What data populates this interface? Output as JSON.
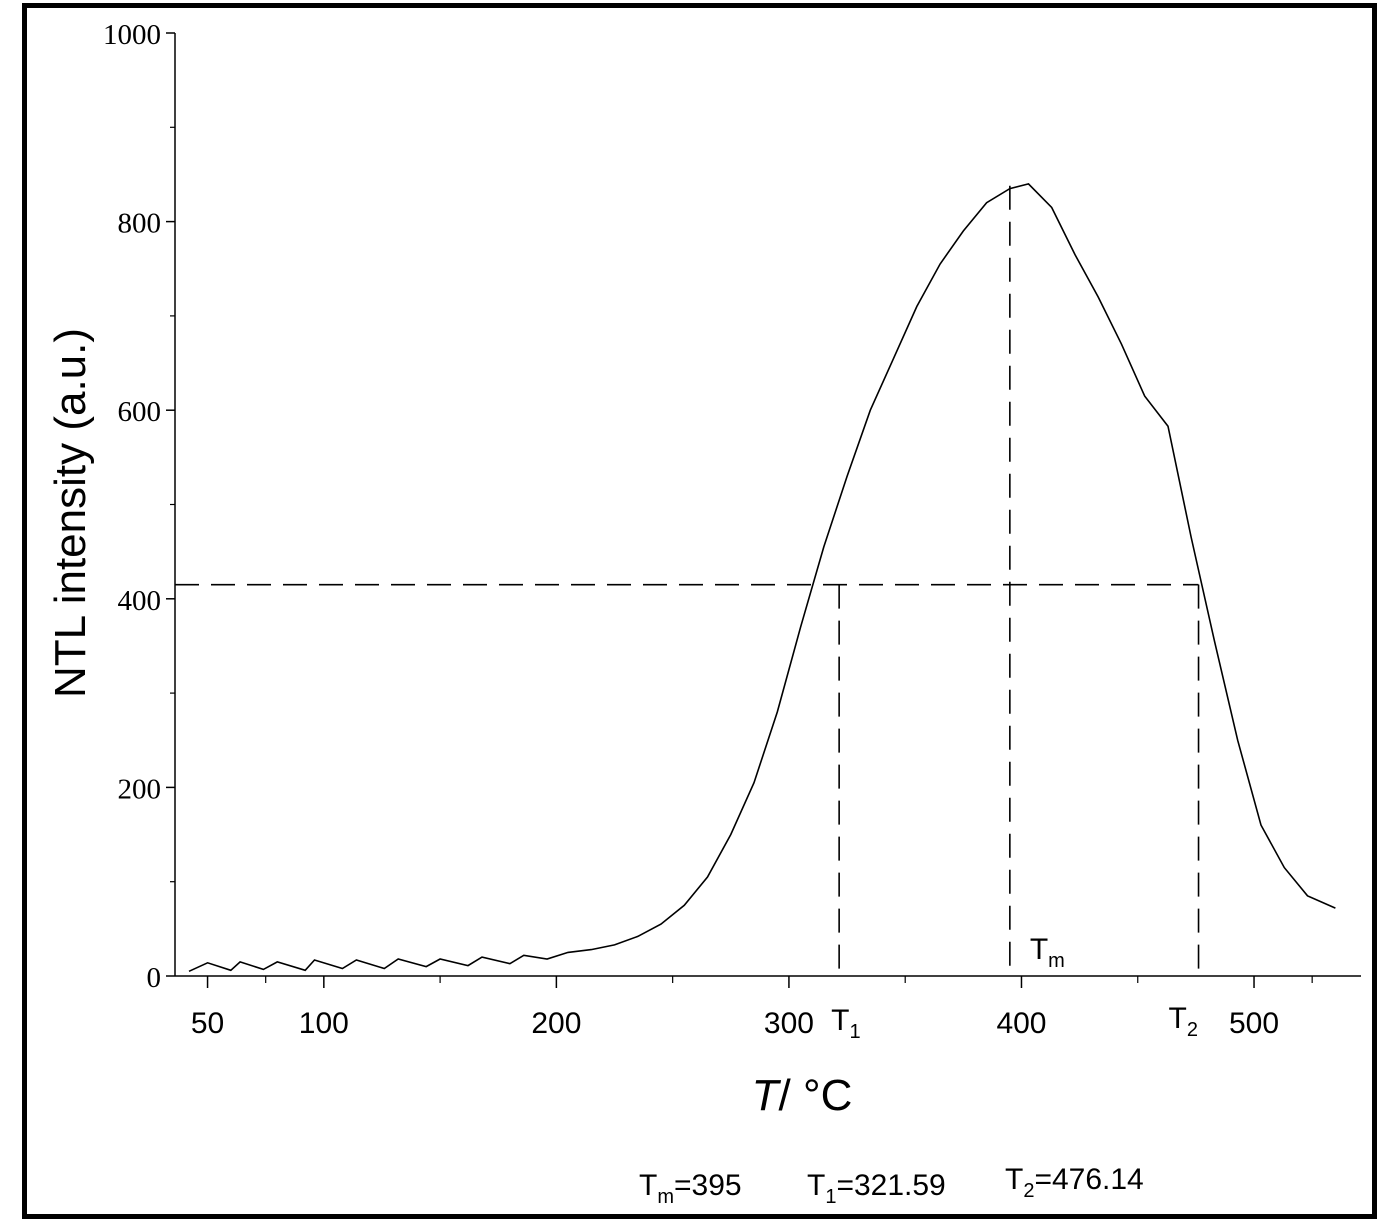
{
  "chart_data": {
    "type": "line",
    "xlabel_italic": "T",
    "xlabel_rest": "/ °C",
    "ylabel": "NTL intensity (a.u.)",
    "ylim": [
      0,
      1000
    ],
    "y_ticks": [
      0,
      200,
      400,
      600,
      800,
      1000
    ],
    "y_tick_labels": [
      "0",
      "200",
      "400",
      "600",
      "800",
      "1000"
    ],
    "x_ticks": [
      {
        "label": "50",
        "value": 50
      },
      {
        "label": "100",
        "value": 100
      },
      {
        "label": "200",
        "value": 200
      },
      {
        "label": "300",
        "value": 300
      },
      {
        "label": "400",
        "value": 400
      },
      {
        "label": "500",
        "value": 500
      }
    ],
    "grid": false,
    "legend": "none",
    "line_color": "#000000",
    "series": [
      {
        "values": [
          [
            42,
            5
          ],
          [
            50,
            14
          ],
          [
            60,
            6
          ],
          [
            64,
            15
          ],
          [
            74,
            7
          ],
          [
            80,
            15
          ],
          [
            92,
            6
          ],
          [
            96,
            17
          ],
          [
            108,
            8
          ],
          [
            114,
            17
          ],
          [
            126,
            8
          ],
          [
            132,
            18
          ],
          [
            144,
            10
          ],
          [
            150,
            18
          ],
          [
            162,
            11
          ],
          [
            168,
            20
          ],
          [
            180,
            13
          ],
          [
            186,
            22
          ],
          [
            196,
            18
          ],
          [
            205,
            25
          ],
          [
            215,
            28
          ],
          [
            225,
            33
          ],
          [
            235,
            42
          ],
          [
            245,
            55
          ],
          [
            255,
            75
          ],
          [
            265,
            105
          ],
          [
            275,
            150
          ],
          [
            285,
            205
          ],
          [
            295,
            280
          ],
          [
            305,
            370
          ],
          [
            315,
            455
          ],
          [
            325,
            530
          ],
          [
            335,
            600
          ],
          [
            345,
            655
          ],
          [
            355,
            710
          ],
          [
            365,
            755
          ],
          [
            375,
            790
          ],
          [
            385,
            820
          ],
          [
            395,
            835
          ],
          [
            403,
            840
          ],
          [
            413,
            815
          ],
          [
            423,
            765
          ],
          [
            433,
            720
          ],
          [
            443,
            670
          ],
          [
            453,
            615
          ],
          [
            463,
            583
          ],
          [
            473,
            465
          ],
          [
            483,
            355
          ],
          [
            493,
            250
          ],
          [
            503,
            160
          ],
          [
            513,
            115
          ],
          [
            523,
            85
          ],
          [
            535,
            72
          ]
        ]
      }
    ],
    "markers": {
      "tm": {
        "value": 395,
        "label_base": "T",
        "label_sub": "m"
      },
      "t1": {
        "value": 321.59,
        "label_base": "T",
        "label_sub": "1"
      },
      "t2": {
        "value": 476.14,
        "label_base": "T",
        "label_sub": "2"
      },
      "half_max_y": 415
    },
    "footer": {
      "tm": {
        "base": "T",
        "sub": "m",
        "rest": "=395"
      },
      "t1": {
        "base": "T",
        "sub": "1",
        "rest": "=321.59"
      },
      "t2": {
        "base": "T",
        "sub": "2",
        "rest": "=476.14"
      }
    }
  }
}
